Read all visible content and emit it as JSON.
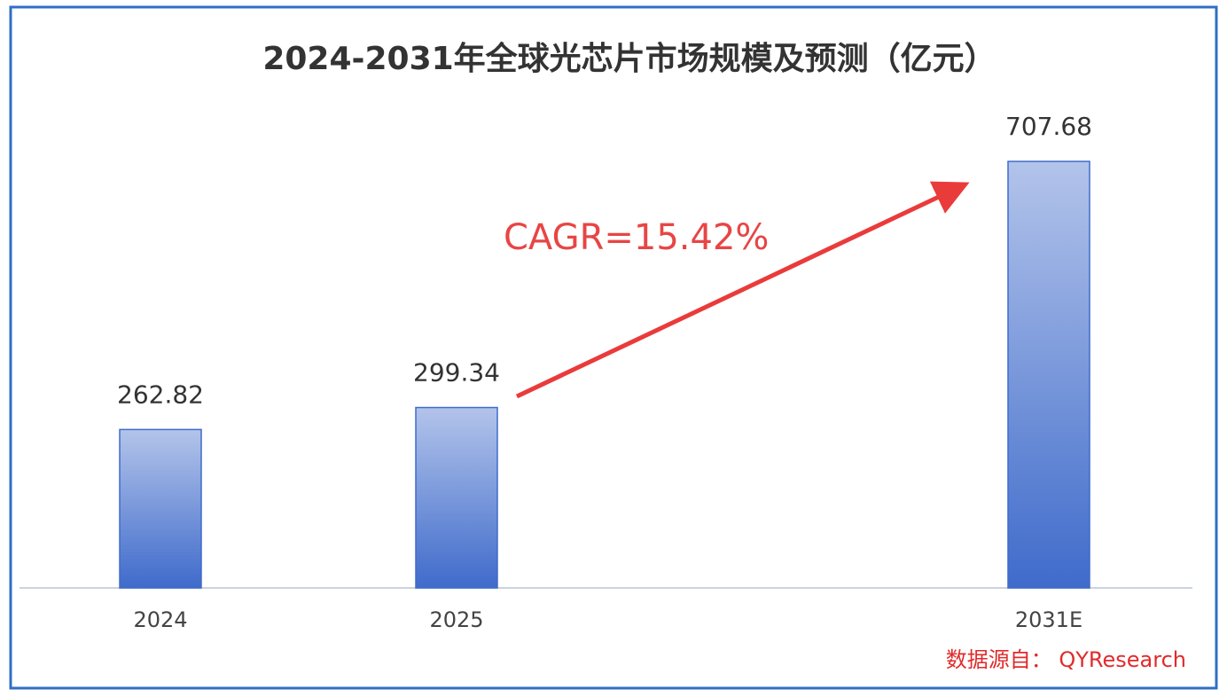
{
  "chart_data": {
    "type": "bar",
    "title": "2024-2031年全球光芯片市场规模及预测（亿元）",
    "categories": [
      "2024",
      "2025",
      null,
      "2031E"
    ],
    "values": [
      262.82,
      299.34,
      null,
      707.68
    ],
    "color": "#3f6bcb",
    "annotation": "CAGR=15.42%",
    "source": "数据源自： QYResearch"
  }
}
